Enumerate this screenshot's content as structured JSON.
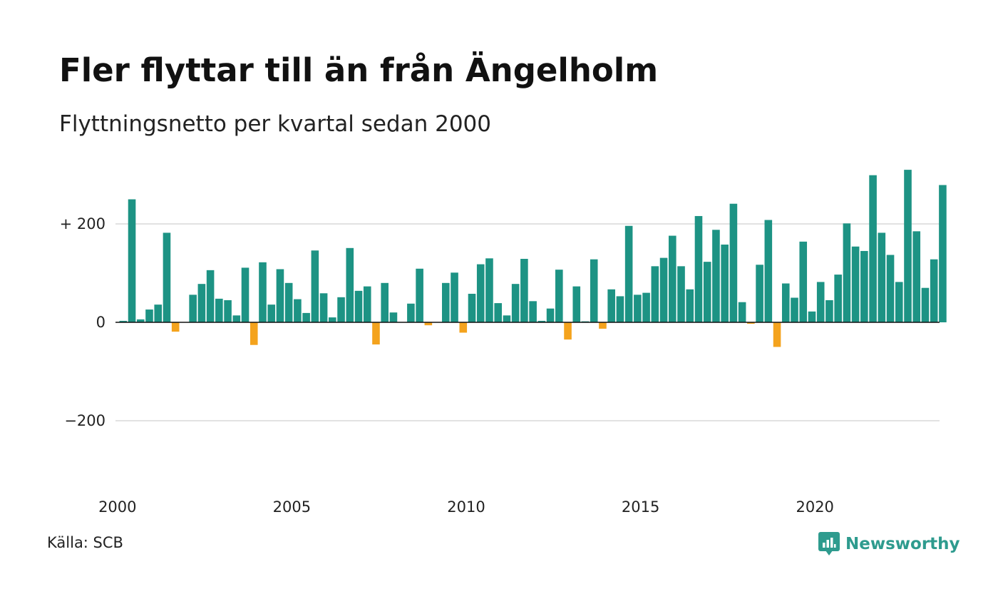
{
  "chart_data": {
    "type": "bar",
    "title": "Fler flyttar till än från Ängelholm",
    "subtitle": "Flyttningsnetto per kvartal sedan 2000",
    "source": "Källa: SCB",
    "brand": "Newsworthy",
    "ylim": [
      -330,
      330
    ],
    "yticks": [
      {
        "value": 200,
        "label": "+ 200"
      },
      {
        "value": 0,
        "label": "0"
      },
      {
        "value": -200,
        "label": "−200"
      }
    ],
    "xticks": [
      {
        "index": 0,
        "label": "2000"
      },
      {
        "index": 20,
        "label": "2005"
      },
      {
        "index": 40,
        "label": "2010"
      },
      {
        "index": 60,
        "label": "2015"
      },
      {
        "index": 80,
        "label": "2020"
      }
    ],
    "start": "2000 Q1",
    "frequency": "quarter",
    "values": [
      3,
      250,
      6,
      26,
      36,
      182,
      -19,
      0,
      56,
      78,
      106,
      48,
      45,
      14,
      111,
      -46,
      122,
      36,
      108,
      80,
      47,
      19,
      146,
      59,
      10,
      51,
      151,
      64,
      73,
      -45,
      80,
      20,
      0,
      38,
      109,
      -6,
      0,
      80,
      101,
      -21,
      58,
      118,
      130,
      39,
      14,
      78,
      129,
      43,
      3,
      28,
      107,
      -35,
      73,
      2,
      128,
      -13,
      67,
      53,
      196,
      56,
      60,
      114,
      131,
      176,
      114,
      67,
      216,
      123,
      188,
      158,
      241,
      41,
      -3,
      117,
      208,
      -50,
      79,
      50,
      164,
      22,
      82,
      45,
      97,
      201,
      154,
      145,
      299,
      182,
      137,
      82,
      310,
      185,
      70,
      128,
      279
    ],
    "colors": {
      "positive": "#1d9384",
      "negative": "#f4a31d",
      "grid": "#e2e2e2",
      "zero_line": "#111111"
    }
  }
}
